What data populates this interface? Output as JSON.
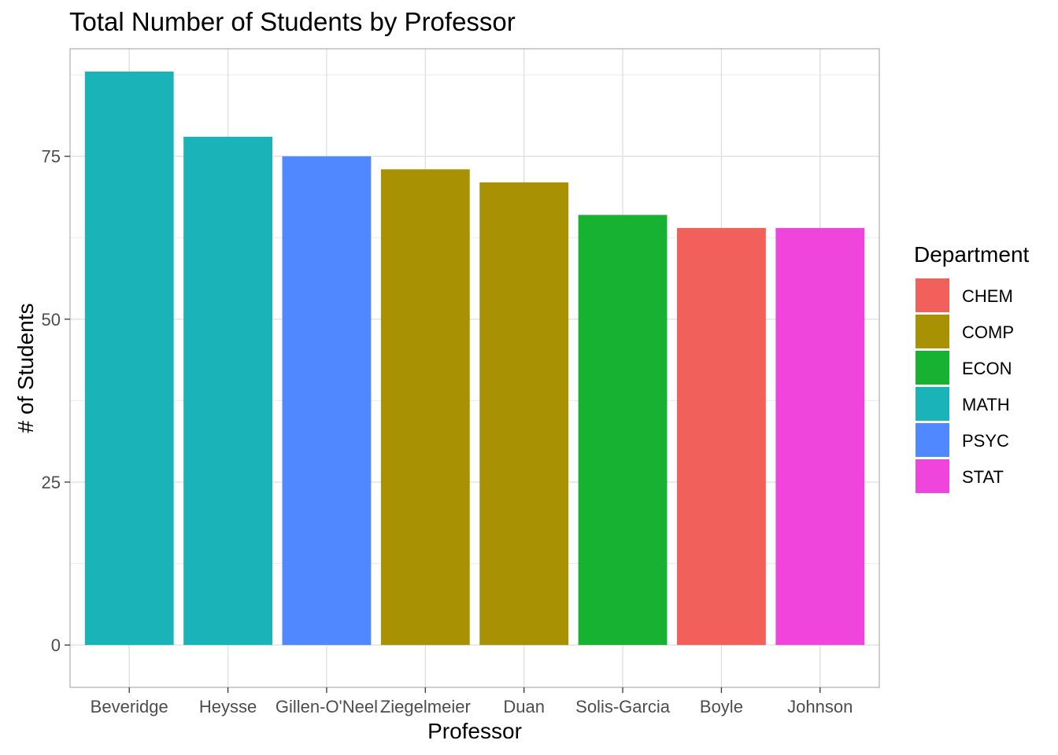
{
  "chart_data": {
    "type": "bar",
    "title": "Total Number of Students by Professor",
    "xlabel": "Professor",
    "ylabel": "# of Students",
    "ylim": [
      -6.5,
      91.5
    ],
    "yticks": [
      0,
      25,
      50,
      75
    ],
    "ytick_labels": [
      "0",
      "25",
      "50",
      "75"
    ],
    "minor_grid": [
      12.5,
      37.5,
      62.5,
      87.5
    ],
    "grid": true,
    "legend_position": "right",
    "categories": [
      "Beveridge",
      "Heysse",
      "Gillen-O'Neel",
      "Ziegelmeier",
      "Duan",
      "Solis-Garcia",
      "Boyle",
      "Johnson"
    ],
    "values": [
      88,
      78,
      75,
      73,
      71,
      66,
      64,
      64
    ],
    "departments": [
      "MATH",
      "MATH",
      "PSYC",
      "COMP",
      "COMP",
      "ECON",
      "CHEM",
      "STAT"
    ],
    "legend": {
      "title": "Department",
      "items": [
        {
          "label": "CHEM",
          "color": "#F8766D"
        },
        {
          "label": "COMP",
          "color": "#B79F00"
        },
        {
          "label": "ECON",
          "color": "#00BA38"
        },
        {
          "label": "MATH",
          "color": "#00BFC4"
        },
        {
          "label": "PSYC",
          "color": "#619CFF"
        },
        {
          "label": "STAT",
          "color": "#F564E3"
        }
      ]
    },
    "colors": {
      "CHEM": "#F2605C",
      "COMP": "#A89103",
      "ECON": "#18B232",
      "MATH": "#19B3B8",
      "PSYC": "#5088FF",
      "STAT": "#EF45DD"
    }
  }
}
